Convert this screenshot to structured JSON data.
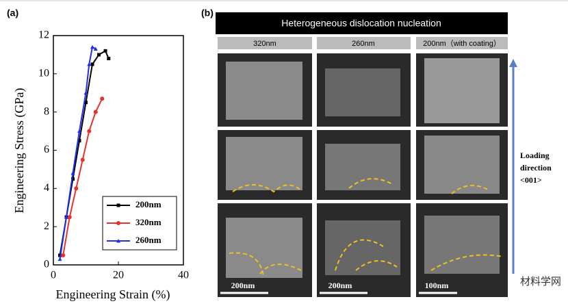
{
  "chart_data": {
    "type": "line",
    "panel_label": "(a)",
    "x_label": "Engineering Strain (%)",
    "y_label": "Engineering Stress (GPa)",
    "xlim": [
      0,
      40
    ],
    "xticks": [
      0,
      20,
      40
    ],
    "ylim": [
      0,
      12
    ],
    "yticks": [
      0,
      2,
      4,
      6,
      8,
      10,
      12
    ],
    "series": [
      {
        "name": "200nm",
        "color": "#000000",
        "marker": "square",
        "x": [
          2,
          4,
          6,
          8,
          10,
          12,
          14,
          16,
          17
        ],
        "values": [
          0.5,
          2.5,
          4.5,
          6.5,
          8.5,
          10.5,
          11.0,
          11.2,
          10.8
        ]
      },
      {
        "name": "320nm",
        "color": "#e8312a",
        "marker": "circle",
        "x": [
          3,
          5,
          7,
          9,
          11,
          13,
          15
        ],
        "values": [
          0.5,
          2.5,
          4,
          5.5,
          7,
          8,
          8.7
        ]
      },
      {
        "name": "260nm",
        "color": "#1f2ee8",
        "marker": "triangle",
        "x": [
          2,
          4,
          6,
          8,
          10,
          11,
          12,
          13
        ],
        "values": [
          0.3,
          2.5,
          4.8,
          7,
          9,
          10.5,
          11.4,
          11.3
        ]
      }
    ]
  },
  "panel_b": {
    "label": "(b)",
    "title": "Heterogeneous dislocation nucleation",
    "columns": [
      "320nm",
      "260nm",
      "200nm（with coating）"
    ],
    "scale_bars": [
      "200nm",
      "200nm",
      "100nm"
    ],
    "loading": [
      "Loading",
      "direction",
      "<001>"
    ]
  },
  "watermark": "材料学网"
}
